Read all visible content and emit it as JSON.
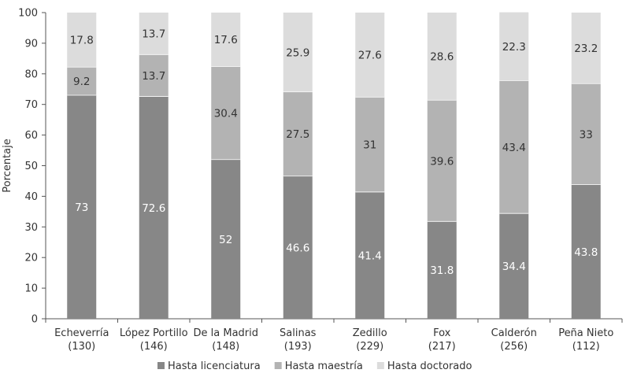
{
  "chart_data": {
    "type": "bar",
    "stacked": true,
    "title": "",
    "xlabel": "",
    "ylabel": "Porcentaje",
    "ylim": [
      0,
      100
    ],
    "yticks": [
      "0",
      "10",
      "20",
      "30",
      "40",
      "50",
      "60",
      "70",
      "80",
      "90",
      "100"
    ],
    "categories": [
      [
        "Echeverría",
        "(130)"
      ],
      [
        "López Portillo",
        "(146)"
      ],
      [
        "De la Madrid",
        "(148)"
      ],
      [
        "Salinas",
        "(193)"
      ],
      [
        "Zedillo",
        "(229)"
      ],
      [
        "Fox",
        "(217)"
      ],
      [
        "Calderón",
        "(256)"
      ],
      [
        "Peña Nieto",
        "(112)"
      ]
    ],
    "series": [
      {
        "name": "Hasta licenciatura",
        "color": "#878787",
        "label_color": "#ffffff",
        "values": [
          73,
          72.6,
          52,
          46.6,
          41.4,
          31.8,
          34.4,
          43.8
        ],
        "labels": [
          "73",
          "72.6",
          "52",
          "46.6",
          "41.4",
          "31.8",
          "34.4",
          "43.8"
        ]
      },
      {
        "name": "Hasta maestría",
        "color": "#b3b3b3",
        "label_color": "#333333",
        "values": [
          9.2,
          13.7,
          30.4,
          27.5,
          31,
          39.6,
          43.4,
          33
        ],
        "labels": [
          "9.2",
          "13.7",
          "30.4",
          "27.5",
          "31",
          "39.6",
          "43.4",
          "33"
        ]
      },
      {
        "name": "Hasta doctorado",
        "color": "#dcdcdc",
        "label_color": "#333333",
        "values": [
          17.8,
          13.7,
          17.6,
          25.9,
          27.6,
          28.6,
          22.3,
          23.2
        ],
        "labels": [
          "17.8",
          "13.7",
          "17.6",
          "25.9",
          "27.6",
          "28.6",
          "22.3",
          "23.2"
        ]
      }
    ],
    "legend_position": "bottom"
  }
}
